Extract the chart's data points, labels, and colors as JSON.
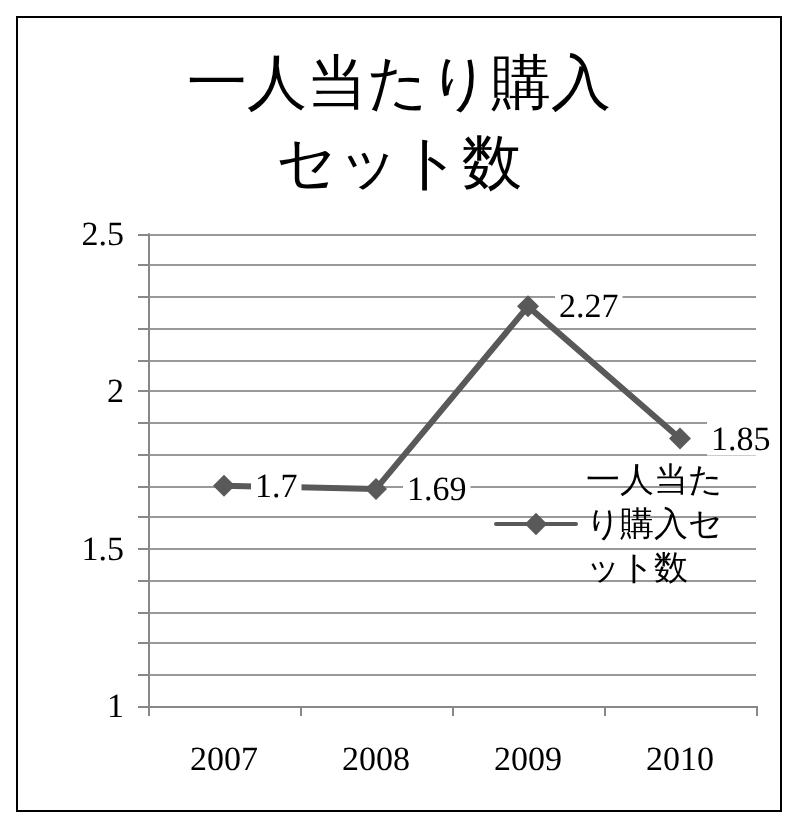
{
  "chart_data": {
    "type": "line",
    "title": "一人当たり購入セット数",
    "categories": [
      "2007",
      "2008",
      "2009",
      "2010"
    ],
    "series": [
      {
        "name": "一人当たり購入セット数",
        "color": "#595959",
        "values": [
          1.7,
          1.69,
          2.27,
          1.85
        ]
      }
    ],
    "ylim": [
      1,
      2.5
    ],
    "yticks": [
      1,
      {
        "value": 1.1,
        "label": null
      },
      {
        "value": 1.2,
        "label": null
      },
      {
        "value": 1.3,
        "label": null
      },
      {
        "value": 1.4,
        "label": null
      },
      1.5,
      {
        "value": 1.6,
        "label": null
      },
      {
        "value": 1.7,
        "label": null
      },
      {
        "value": 1.8,
        "label": null
      },
      {
        "value": 1.9,
        "label": null
      },
      2,
      {
        "value": 2.1,
        "label": null
      },
      {
        "value": 2.2,
        "label": null
      },
      {
        "value": 2.3,
        "label": null
      },
      {
        "value": 2.4,
        "label": null
      },
      2.5
    ],
    "grid": "y",
    "legend": "right",
    "marker": "diamond",
    "line_style": "solid",
    "data_labels": true
  }
}
